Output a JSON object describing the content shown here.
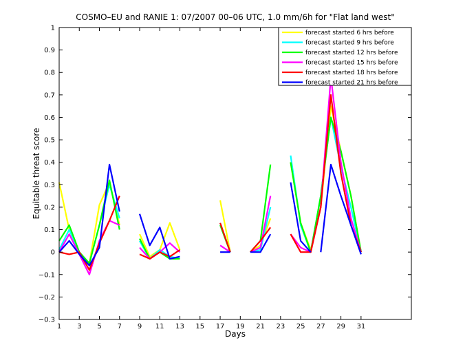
{
  "chart_data": {
    "type": "line",
    "title": "COSMO–EU and RANIE 1: 07/2007 00–06 UTC, 1.0 mm/6h for \"Flat land west\"",
    "xlabel": "Days",
    "ylabel": "Equitable threat score",
    "xlim": [
      1,
      36
    ],
    "ylim": [
      -0.3,
      1.0
    ],
    "x_ticks": [
      1,
      3,
      5,
      7,
      9,
      11,
      13,
      15,
      17,
      19,
      21,
      23,
      25,
      27,
      29,
      31
    ],
    "y_ticks": [
      -0.3,
      -0.2,
      -0.1,
      0,
      0.1,
      0.2,
      0.3,
      0.4,
      0.5,
      0.6,
      0.7,
      0.8,
      0.9,
      1
    ],
    "y_tick_labels": [
      "−0.3",
      "−0.2",
      "−0.1",
      "0",
      "0.1",
      "0.2",
      "0.3",
      "0.4",
      "0.5",
      "0.6",
      "0.7",
      "0.8",
      "0.9",
      "1"
    ],
    "legend_position": "top-right",
    "grid": false,
    "series": [
      {
        "name": "forecast started 6 hrs before",
        "color": "#ffff00",
        "segments": [
          [
            [
              1,
              0.31
            ],
            [
              2,
              0.1
            ],
            [
              3,
              -0.01
            ],
            [
              4,
              -0.05
            ],
            [
              5,
              0.21
            ],
            [
              6,
              0.31
            ],
            [
              7,
              0.12
            ]
          ],
          [
            [
              9,
              0.08
            ],
            [
              10,
              -0.02
            ],
            [
              11,
              0.01
            ],
            [
              12,
              0.13
            ],
            [
              13,
              0.01
            ]
          ],
          [
            [
              17,
              0.23
            ],
            [
              18,
              0.0
            ]
          ],
          [
            [
              20,
              0.0
            ],
            [
              21,
              0.03
            ],
            [
              22,
              0.15
            ]
          ],
          [
            [
              24,
              0.4
            ],
            [
              25,
              0.13
            ],
            [
              26,
              0.01
            ],
            [
              27,
              0.2
            ],
            [
              28,
              0.65
            ],
            [
              29,
              0.45
            ],
            [
              30,
              0.25
            ],
            [
              31,
              0.0
            ]
          ]
        ]
      },
      {
        "name": "forecast started 9 hrs before",
        "color": "#00ffff",
        "segments": [
          [
            [
              1,
              0.01
            ],
            [
              2,
              0.1
            ],
            [
              3,
              0.0
            ],
            [
              4,
              -0.05
            ],
            [
              5,
              0.12
            ],
            [
              6,
              0.3
            ],
            [
              7,
              0.15
            ]
          ],
          [
            [
              9,
              0.05
            ],
            [
              10,
              -0.03
            ],
            [
              11,
              0.01
            ],
            [
              12,
              -0.02
            ],
            [
              13,
              -0.03
            ]
          ],
          [
            [
              17,
              0.13
            ],
            [
              18,
              0.0
            ]
          ],
          [
            [
              20,
              0.0
            ],
            [
              21,
              0.01
            ],
            [
              22,
              0.2
            ]
          ],
          [
            [
              24,
              0.43
            ],
            [
              25,
              0.12
            ],
            [
              26,
              0.0
            ],
            [
              27,
              0.25
            ],
            [
              28,
              0.6
            ],
            [
              29,
              0.38
            ],
            [
              30,
              0.2
            ],
            [
              31,
              0.0
            ]
          ]
        ]
      },
      {
        "name": "forecast started 12 hrs before",
        "color": "#00ff00",
        "segments": [
          [
            [
              1,
              0.05
            ],
            [
              2,
              0.12
            ],
            [
              3,
              0.0
            ],
            [
              4,
              -0.05
            ],
            [
              5,
              0.12
            ],
            [
              6,
              0.32
            ],
            [
              7,
              0.1
            ]
          ],
          [
            [
              9,
              0.06
            ],
            [
              10,
              -0.03
            ],
            [
              11,
              0.0
            ],
            [
              12,
              -0.03
            ],
            [
              13,
              -0.03
            ]
          ],
          [
            [
              17,
              0.12
            ],
            [
              18,
              0.0
            ]
          ],
          [
            [
              20,
              0.0
            ],
            [
              21,
              0.05
            ],
            [
              22,
              0.39
            ]
          ],
          [
            [
              24,
              0.4
            ],
            [
              25,
              0.13
            ],
            [
              26,
              0.0
            ],
            [
              27,
              0.25
            ],
            [
              28,
              0.6
            ],
            [
              29,
              0.45
            ],
            [
              30,
              0.25
            ],
            [
              31,
              0.0
            ]
          ]
        ]
      },
      {
        "name": "forecast started 15 hrs before",
        "color": "#ff00ff",
        "segments": [
          [
            [
              1,
              0.0
            ],
            [
              2,
              0.08
            ],
            [
              3,
              -0.01
            ],
            [
              4,
              -0.1
            ],
            [
              5,
              0.05
            ],
            [
              6,
              0.14
            ],
            [
              7,
              0.12
            ]
          ],
          [
            [
              9,
              0.02
            ],
            [
              10,
              -0.03
            ],
            [
              11,
              0.0
            ],
            [
              12,
              0.04
            ],
            [
              13,
              0.0
            ]
          ],
          [
            [
              17,
              0.03
            ],
            [
              18,
              0.0
            ]
          ],
          [
            [
              20,
              0.0
            ],
            [
              21,
              0.02
            ],
            [
              22,
              0.25
            ]
          ],
          [
            [
              24,
              0.08
            ],
            [
              25,
              0.02
            ],
            [
              26,
              0.0
            ],
            [
              27,
              0.2
            ],
            [
              28,
              0.78
            ],
            [
              29,
              0.4
            ],
            [
              30,
              0.15
            ],
            [
              31,
              0.0
            ]
          ]
        ]
      },
      {
        "name": "forecast started 18 hrs before",
        "color": "#ff0000",
        "segments": [
          [
            [
              1,
              0.0
            ],
            [
              2,
              -0.01
            ],
            [
              3,
              0.0
            ],
            [
              4,
              -0.08
            ],
            [
              5,
              0.04
            ],
            [
              6,
              0.14
            ],
            [
              7,
              0.25
            ]
          ],
          [
            [
              9,
              -0.01
            ],
            [
              10,
              -0.03
            ],
            [
              11,
              0.0
            ],
            [
              12,
              -0.02
            ],
            [
              13,
              0.01
            ]
          ],
          [
            [
              17,
              0.13
            ],
            [
              18,
              0.0
            ]
          ],
          [
            [
              20,
              0.0
            ],
            [
              21,
              0.05
            ],
            [
              22,
              0.11
            ]
          ],
          [
            [
              24,
              0.08
            ],
            [
              25,
              0.0
            ],
            [
              26,
              0.0
            ],
            [
              27,
              0.2
            ],
            [
              28,
              0.7
            ],
            [
              29,
              0.35
            ],
            [
              30,
              0.12
            ],
            [
              31,
              0.0
            ]
          ]
        ]
      },
      {
        "name": "forecast started 21 hrs before",
        "color": "#0000ff",
        "segments": [
          [
            [
              1,
              0.0
            ],
            [
              2,
              0.05
            ],
            [
              3,
              -0.01
            ],
            [
              4,
              -0.06
            ],
            [
              5,
              0.02
            ],
            [
              6,
              0.39
            ],
            [
              7,
              0.18
            ]
          ],
          [
            [
              9,
              0.17
            ],
            [
              10,
              0.03
            ],
            [
              11,
              0.11
            ],
            [
              12,
              -0.03
            ],
            [
              13,
              -0.02
            ]
          ],
          [
            [
              17,
              0.0
            ],
            [
              18,
              0.0
            ]
          ],
          [
            [
              20,
              0.0
            ],
            [
              21,
              0.0
            ],
            [
              22,
              0.08
            ]
          ],
          [
            [
              24,
              0.31
            ],
            [
              25,
              0.05
            ],
            [
              26,
              0.0
            ]
          ],
          [
            [
              27,
              0.0
            ],
            [
              28,
              0.39
            ],
            [
              29,
              0.25
            ],
            [
              30,
              0.12
            ],
            [
              31,
              -0.01
            ]
          ]
        ]
      }
    ]
  }
}
